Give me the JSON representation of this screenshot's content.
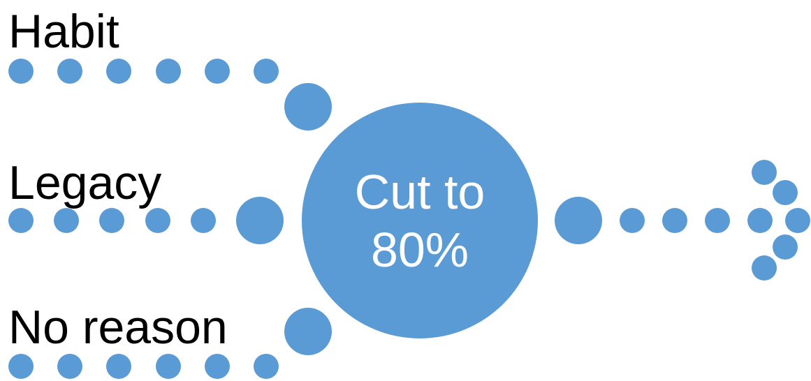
{
  "diagram": {
    "accent_color": "#5b9bd5",
    "inputs": [
      {
        "label": "Habit"
      },
      {
        "label": "Legacy"
      },
      {
        "label": "No reason"
      }
    ],
    "center": {
      "line1": "Cut to",
      "line2": "80%"
    },
    "output": {
      "shape": "dotted-arrow-right"
    }
  }
}
